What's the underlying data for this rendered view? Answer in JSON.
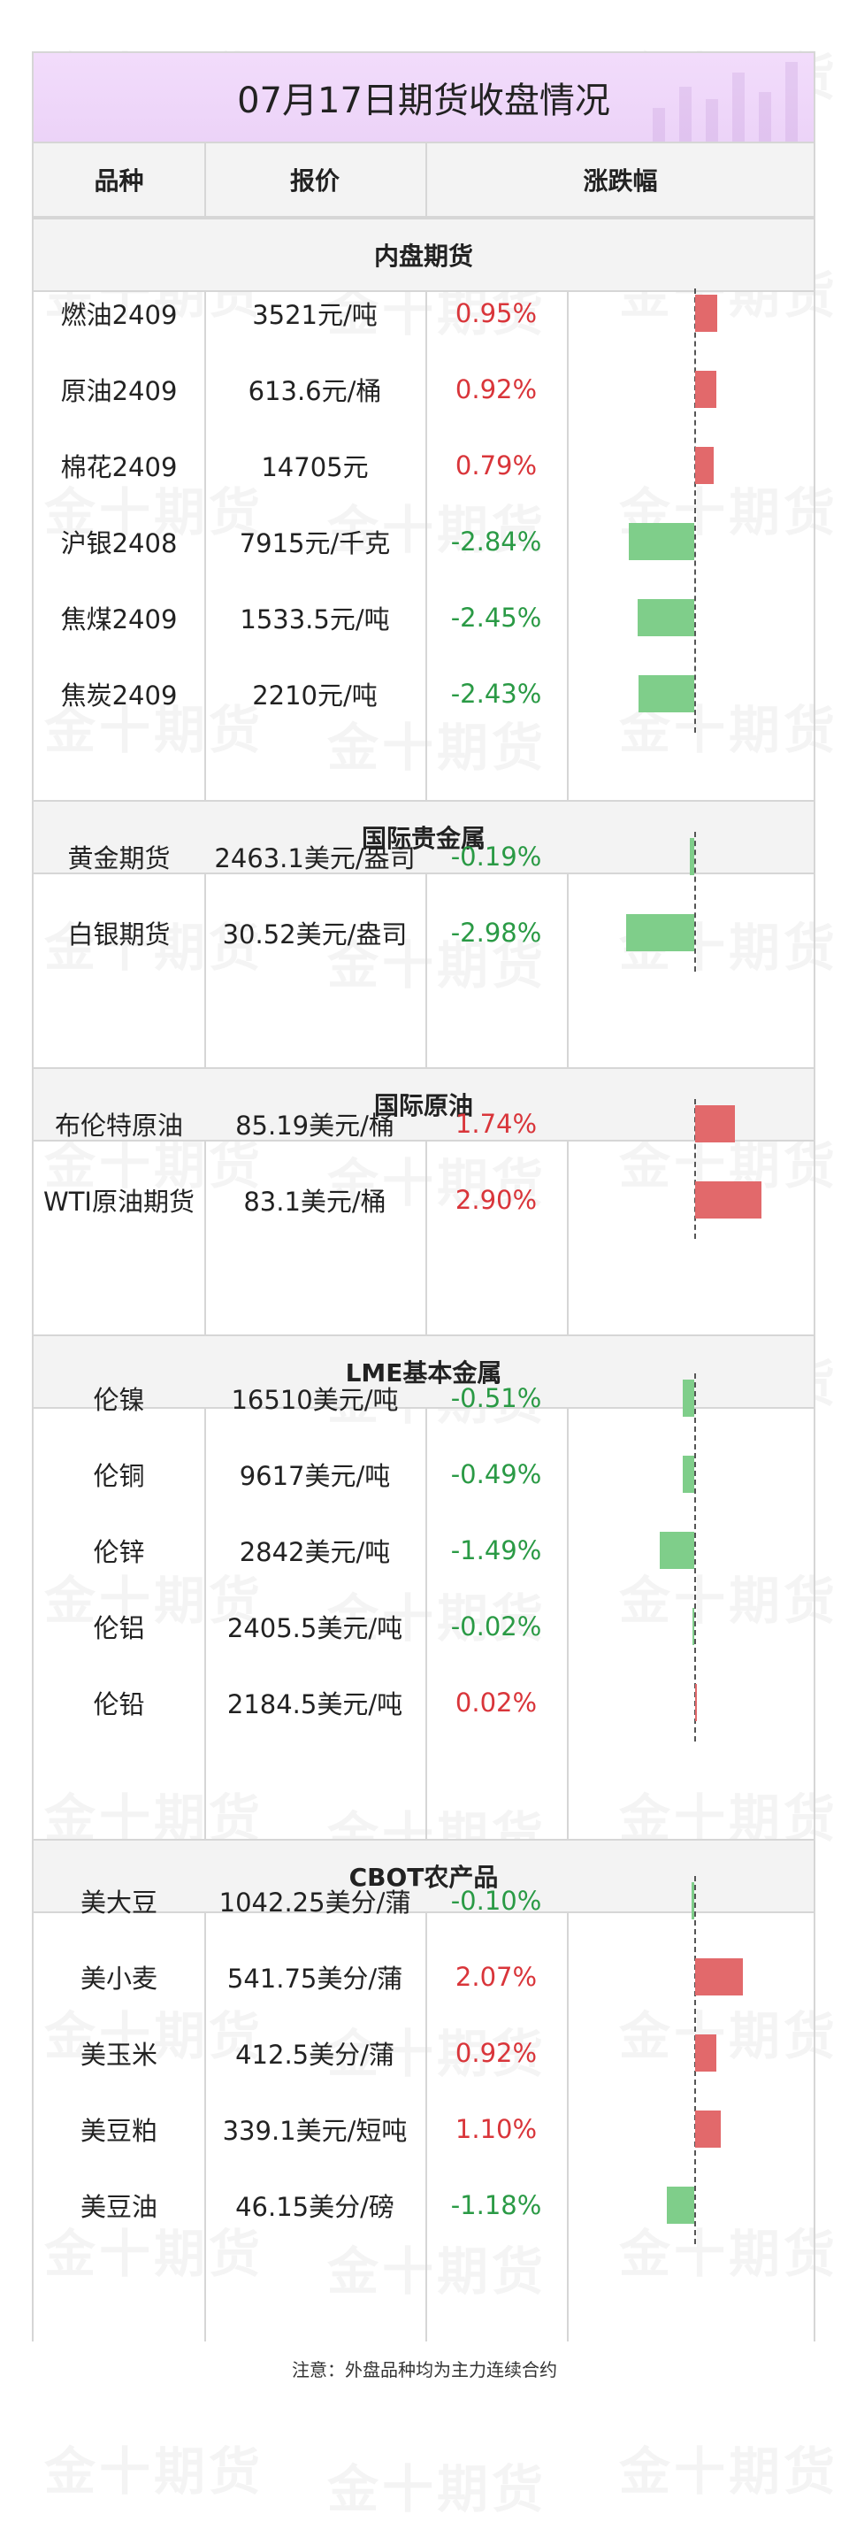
{
  "title": "07月17日期货收盘情况",
  "watermark_text": "金十期货",
  "columns": [
    "品种",
    "报价",
    "涨跌幅"
  ],
  "colors": {
    "up": "#d9353a",
    "down": "#2a9a45",
    "bar_up": "#e2696b",
    "bar_down": "#7fce8a",
    "title_bg": "#efd8fa"
  },
  "sections": [
    {
      "name": "内盘期货",
      "rows": [
        {
          "name": "燃油2409",
          "price": "3521元/吨",
          "change": "0.95%",
          "pct": 0.95
        },
        {
          "name": "原油2409",
          "price": "613.6元/桶",
          "change": "0.92%",
          "pct": 0.92
        },
        {
          "name": "棉花2409",
          "price": "14705元",
          "change": "0.79%",
          "pct": 0.79
        },
        {
          "name": "沪银2408",
          "price": "7915元/千克",
          "change": "-2.84%",
          "pct": -2.84
        },
        {
          "name": "焦煤2409",
          "price": "1533.5元/吨",
          "change": "-2.45%",
          "pct": -2.45
        },
        {
          "name": "焦炭2409",
          "price": "2210元/吨",
          "change": "-2.43%",
          "pct": -2.43
        }
      ]
    },
    {
      "name": "国际贵金属",
      "rows": [
        {
          "name": "黄金期货",
          "price": "2463.1美元/盎司",
          "change": "-0.19%",
          "pct": -0.19
        },
        {
          "name": "白银期货",
          "price": "30.52美元/盎司",
          "change": "-2.98%",
          "pct": -2.98
        }
      ]
    },
    {
      "name": "国际原油",
      "rows": [
        {
          "name": "布伦特原油",
          "price": "85.19美元/桶",
          "change": "1.74%",
          "pct": 1.74
        },
        {
          "name": "WTI原油期货",
          "price": "83.1美元/桶",
          "change": "2.90%",
          "pct": 2.9
        }
      ]
    },
    {
      "name": "LME基本金属",
      "rows": [
        {
          "name": "伦镍",
          "price": "16510美元/吨",
          "change": "-0.51%",
          "pct": -0.51
        },
        {
          "name": "伦铜",
          "price": "9617美元/吨",
          "change": "-0.49%",
          "pct": -0.49
        },
        {
          "name": "伦锌",
          "price": "2842美元/吨",
          "change": "-1.49%",
          "pct": -1.49
        },
        {
          "name": "伦铝",
          "price": "2405.5美元/吨",
          "change": "-0.02%",
          "pct": -0.02
        },
        {
          "name": "伦铅",
          "price": "2184.5美元/吨",
          "change": "0.02%",
          "pct": 0.02
        }
      ]
    },
    {
      "name": "CBOT农产品",
      "rows": [
        {
          "name": "美大豆",
          "price": "1042.25美分/蒲",
          "change": "-0.10%",
          "pct": -0.1
        },
        {
          "name": "美小麦",
          "price": "541.75美分/蒲",
          "change": "2.07%",
          "pct": 2.07
        },
        {
          "name": "美玉米",
          "price": "412.5美分/蒲",
          "change": "0.92%",
          "pct": 0.92
        },
        {
          "name": "美豆粕",
          "price": "339.1美元/短吨",
          "change": "1.10%",
          "pct": 1.1
        },
        {
          "name": "美豆油",
          "price": "46.15美分/磅",
          "change": "-1.18%",
          "pct": -1.18
        }
      ]
    }
  ],
  "note": "注意：外盘品种均为主力连续合约"
}
